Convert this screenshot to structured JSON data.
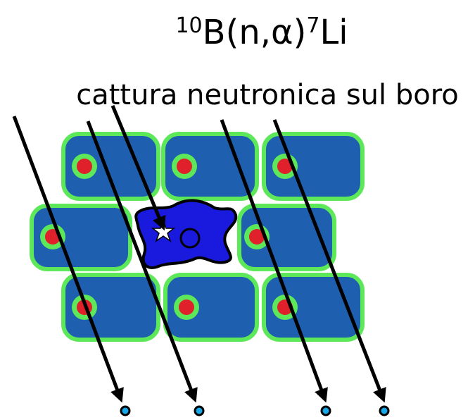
{
  "title": {
    "parts": [
      "10",
      "B(n,α)",
      "7",
      "Li"
    ]
  },
  "subtitle": "cattura neutronica sul boro"
}
